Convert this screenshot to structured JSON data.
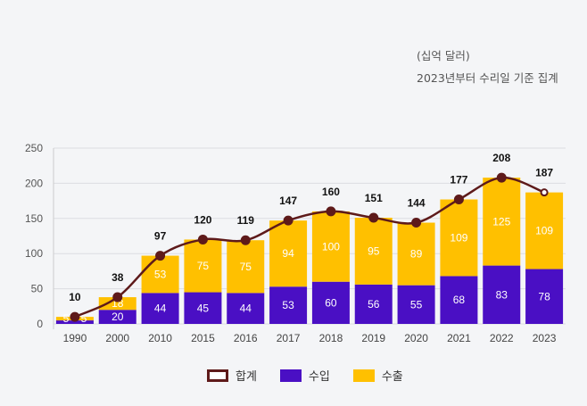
{
  "notes": {
    "unit": "(십억 달러)",
    "basis": "2023년부터 수리일 기준 집계"
  },
  "chart_data": {
    "type": "bar",
    "stacked": true,
    "categories": [
      "1990",
      "2000",
      "2010",
      "2015",
      "2016",
      "2017",
      "2018",
      "2019",
      "2020",
      "2021",
      "2022",
      "2023"
    ],
    "series": [
      {
        "name": "수입",
        "color": "#4a0fc4",
        "values": [
          5,
          20,
          44,
          45,
          44,
          53,
          60,
          56,
          55,
          68,
          83,
          78
        ]
      },
      {
        "name": "수출",
        "color": "#ffc000",
        "values": [
          5,
          18,
          53,
          75,
          75,
          94,
          100,
          95,
          89,
          109,
          125,
          109
        ]
      }
    ],
    "total": {
      "name": "합계",
      "type": "line",
      "color": "#5e1a1a",
      "values": [
        10,
        38,
        97,
        120,
        119,
        147,
        160,
        151,
        144,
        177,
        208,
        187
      ]
    },
    "ylim": [
      0,
      250
    ],
    "yticks": [
      0,
      50,
      100,
      150,
      200,
      250
    ],
    "grid": true,
    "legend": "bottom"
  }
}
